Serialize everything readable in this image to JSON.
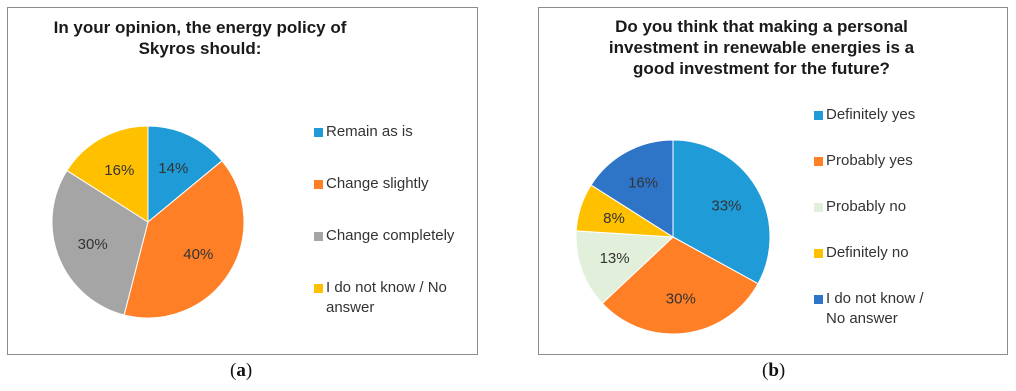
{
  "figure": {
    "caption_a": "a",
    "caption_b": "b"
  },
  "chart_data": [
    {
      "type": "pie",
      "title": "In your opinion, the energy policy of\nSkyros should:",
      "categories": [
        "Remain as is",
        "Change slightly",
        "Change completely",
        "I do not know / No answer"
      ],
      "values": [
        14,
        40,
        30,
        16
      ],
      "labels": [
        "14%",
        "40%",
        "30%",
        "16%"
      ],
      "colors": [
        "#1f9bd7",
        "#ff7f27",
        "#a5a5a5",
        "#ffc000"
      ],
      "legend_position": "right"
    },
    {
      "type": "pie",
      "title": "Do you think that making a personal\ninvestment in renewable energies is a\ngood investment for the future?",
      "categories": [
        "Definitely yes",
        "Probably yes",
        "Probably no",
        "Definitely no",
        "I do not know / No answer"
      ],
      "values": [
        33,
        30,
        13,
        8,
        16
      ],
      "labels": [
        "33%",
        "30%",
        "13%",
        "8%",
        "16%"
      ],
      "colors": [
        "#1f9bd7",
        "#ff7f27",
        "#e2efda",
        "#ffc000",
        "#2e75c8"
      ],
      "legend_position": "right"
    }
  ]
}
